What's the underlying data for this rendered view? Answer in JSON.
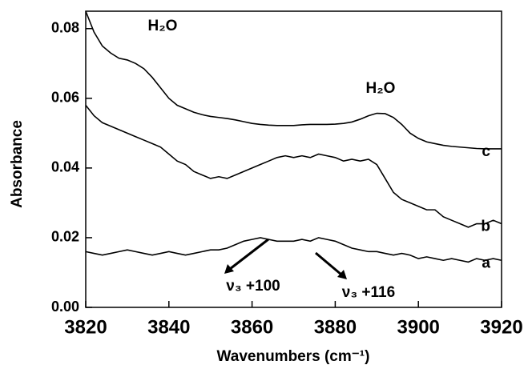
{
  "chart_data": {
    "type": "line",
    "x_label": "Wavenumbers (cm⁻¹)",
    "y_label": "Absorbance",
    "x": [
      3820,
      3822,
      3824,
      3826,
      3828,
      3830,
      3832,
      3834,
      3836,
      3838,
      3840,
      3842,
      3844,
      3846,
      3848,
      3850,
      3852,
      3854,
      3856,
      3858,
      3860,
      3862,
      3864,
      3866,
      3868,
      3870,
      3872,
      3874,
      3876,
      3878,
      3880,
      3882,
      3884,
      3886,
      3888,
      3890,
      3892,
      3894,
      3896,
      3898,
      3900,
      3902,
      3904,
      3906,
      3908,
      3910,
      3912,
      3914,
      3916,
      3918,
      3920
    ],
    "series": [
      {
        "name": "a",
        "color": "#000000",
        "values": [
          0.016,
          0.0155,
          0.015,
          0.0155,
          0.016,
          0.0165,
          0.016,
          0.0155,
          0.015,
          0.0155,
          0.016,
          0.0155,
          0.015,
          0.0155,
          0.016,
          0.0165,
          0.0165,
          0.017,
          0.018,
          0.019,
          0.0195,
          0.02,
          0.0195,
          0.019,
          0.019,
          0.019,
          0.0195,
          0.019,
          0.02,
          0.0195,
          0.019,
          0.018,
          0.017,
          0.0165,
          0.016,
          0.016,
          0.0155,
          0.015,
          0.0155,
          0.015,
          0.014,
          0.0145,
          0.014,
          0.0135,
          0.014,
          0.0135,
          0.013,
          0.014,
          0.0135,
          0.014,
          0.0135
        ]
      },
      {
        "name": "b",
        "color": "#000000",
        "values": [
          0.058,
          0.055,
          0.053,
          0.052,
          0.051,
          0.05,
          0.049,
          0.048,
          0.047,
          0.046,
          0.044,
          0.042,
          0.041,
          0.039,
          0.038,
          0.037,
          0.0375,
          0.037,
          0.038,
          0.039,
          0.04,
          0.041,
          0.042,
          0.043,
          0.0435,
          0.043,
          0.0435,
          0.043,
          0.044,
          0.0435,
          0.043,
          0.042,
          0.0425,
          0.042,
          0.0425,
          0.041,
          0.037,
          0.033,
          0.031,
          0.03,
          0.029,
          0.028,
          0.028,
          0.026,
          0.025,
          0.024,
          0.023,
          0.024,
          0.024,
          0.025,
          0.024
        ]
      },
      {
        "name": "c",
        "color": "#000000",
        "values": [
          0.085,
          0.079,
          0.075,
          0.073,
          0.0715,
          0.071,
          0.07,
          0.0685,
          0.066,
          0.063,
          0.06,
          0.058,
          0.057,
          0.056,
          0.0553,
          0.0548,
          0.0545,
          0.0542,
          0.0538,
          0.0533,
          0.0528,
          0.0525,
          0.0523,
          0.0522,
          0.0522,
          0.0522,
          0.0524,
          0.0525,
          0.0525,
          0.0525,
          0.0526,
          0.0528,
          0.0532,
          0.054,
          0.055,
          0.0557,
          0.0556,
          0.0545,
          0.0525,
          0.05,
          0.0485,
          0.0475,
          0.047,
          0.0465,
          0.0462,
          0.046,
          0.0458,
          0.0456,
          0.0455,
          0.0455,
          0.0455
        ]
      }
    ],
    "annotations": [
      "H₂O",
      "H₂O",
      "ν₃ +100",
      "ν₃ +116"
    ],
    "xlim": [
      3820,
      3920
    ],
    "xticks": [
      3820,
      3840,
      3860,
      3880,
      3900,
      3920
    ],
    "ylim": [
      0,
      0.085
    ],
    "yticks": [
      {
        "value": 0,
        "label": "0.00"
      },
      0.02,
      0.04,
      0.06,
      0.08
    ],
    "grid": false
  }
}
